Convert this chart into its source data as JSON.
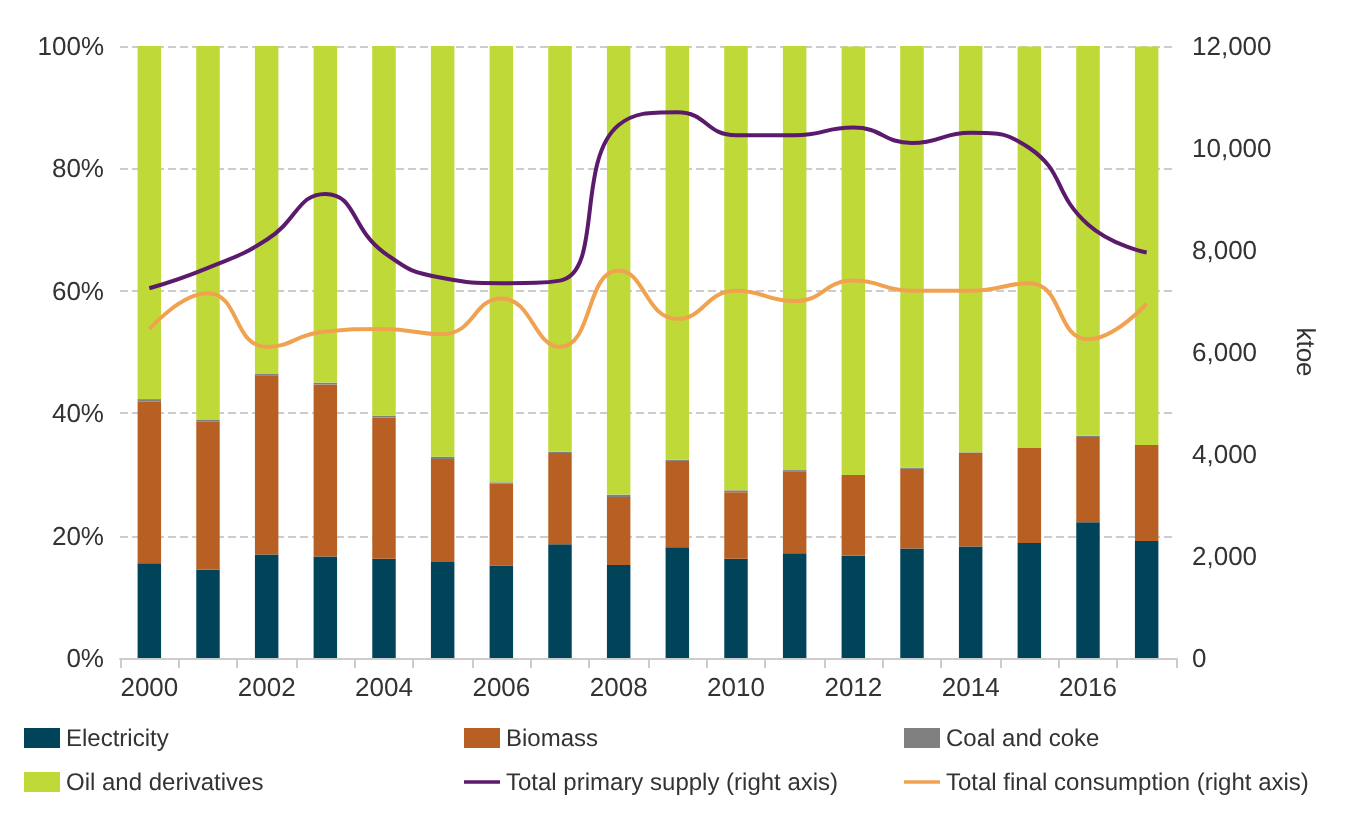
{
  "chart_data": {
    "type": "bar",
    "stacked": true,
    "y2label": "ktoe",
    "categories": [
      "2000",
      null,
      "2002",
      null,
      "2004",
      null,
      "2006",
      null,
      "2008",
      null,
      "2010",
      null,
      "2012",
      null,
      "2014",
      null,
      "2016",
      null
    ],
    "series": [
      {
        "name": "Electricity",
        "color": "#01445a",
        "values": [
          15.5,
          14.4,
          16.9,
          16.6,
          16.2,
          15.7,
          15.1,
          18.6,
          15.2,
          18.1,
          16.2,
          17.1,
          16.7,
          17.9,
          18.2,
          18.8,
          22.2,
          19.1
        ]
      },
      {
        "name": "Biomass",
        "color": "#b85f24",
        "values": [
          26.4,
          24.3,
          29.2,
          28.1,
          23.1,
          16.8,
          13.4,
          14.9,
          11.1,
          14.1,
          10.9,
          13.4,
          13.2,
          13.0,
          15.3,
          15.5,
          13.9,
          15.7
        ]
      },
      {
        "name": "Coal and coke",
        "color": "#808080",
        "values": [
          0.4,
          0.2,
          0.3,
          0.3,
          0.3,
          0.4,
          0.2,
          0.2,
          0.4,
          0.2,
          0.3,
          0.2,
          null,
          0.2,
          0.1,
          null,
          0.2,
          null
        ]
      },
      {
        "name": "Oil and derivatives",
        "color": "#bfd939",
        "values": [
          57.7,
          61.1,
          53.6,
          55.0,
          60.4,
          67.1,
          71.3,
          66.3,
          73.3,
          67.6,
          72.6,
          69.3,
          70.0,
          68.9,
          66.4,
          65.6,
          63.7,
          65.1
        ]
      },
      {
        "name": "Total primary supply (right axis)",
        "type": "line",
        "axis": "y2",
        "color": "#5b1a6b",
        "values": [
          7250,
          7650,
          8200,
          9100,
          7950,
          7450,
          7350,
          7400,
          10450,
          10700,
          10250,
          10250,
          10400,
          10100,
          10300,
          10000,
          8500,
          7950
        ]
      },
      {
        "name": "Total final consumption (right axis)",
        "type": "line",
        "axis": "y2",
        "color": "#f0a250",
        "values": [
          6450,
          7150,
          6100,
          6400,
          6450,
          6350,
          7050,
          6100,
          7600,
          6650,
          7200,
          7000,
          7400,
          7200,
          7200,
          7350,
          6250,
          6950
        ]
      }
    ],
    "ylim": [
      0,
      100
    ],
    "yticks": [
      {
        "value": 0,
        "label": "0%"
      },
      {
        "value": 20,
        "label": "20%"
      },
      {
        "value": 40,
        "label": "40%"
      },
      {
        "value": 60,
        "label": "60%"
      },
      {
        "value": 80,
        "label": "80%"
      },
      {
        "value": 100,
        "label": "100%"
      }
    ],
    "y2lim": [
      0,
      12000
    ],
    "y2ticks": [
      {
        "value": 0,
        "label": "0"
      },
      {
        "value": 2000,
        "label": "2,000"
      },
      {
        "value": 4000,
        "label": "4,000"
      },
      {
        "value": 6000,
        "label": "6,000"
      },
      {
        "value": 8000,
        "label": "8,000"
      },
      {
        "value": 10000,
        "label": "10,000"
      },
      {
        "value": 12000,
        "label": "12,000"
      }
    ],
    "grid": "y",
    "legend": "bottom",
    "marker": "none",
    "line_style": "solid"
  }
}
